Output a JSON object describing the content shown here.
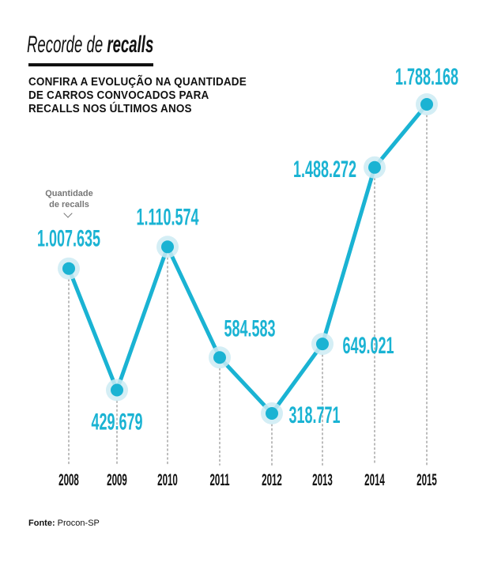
{
  "title_light": "Recorde de ",
  "title_bold": "recalls",
  "subtitle": "CONFIRA A EVOLUÇÃO NA QUANTIDADE DE CARROS CONVOCADOS PARA RECALLS NOS ÚLTIMOS ANOS",
  "y_note": "Quantidade de recalls",
  "source_label": "Fonte:",
  "source_value": "Procon-SP",
  "colors": {
    "line": "#1ab3d3",
    "halo": "#cdebf3",
    "dots": "#bbbbbb"
  },
  "chart_data": {
    "type": "line",
    "title": "Recorde de recalls",
    "xlabel": "",
    "ylabel": "Quantidade de recalls",
    "categories": [
      "2008",
      "2009",
      "2010",
      "2011",
      "2012",
      "2013",
      "2014",
      "2015"
    ],
    "values": [
      1007635,
      429679,
      1110574,
      584583,
      318771,
      649021,
      1488272,
      1788168
    ],
    "labels": [
      "1.007.635",
      "429.679",
      "1.110.574",
      "584.583",
      "318.771",
      "649.021",
      "1.488.272",
      "1.788.168"
    ]
  }
}
